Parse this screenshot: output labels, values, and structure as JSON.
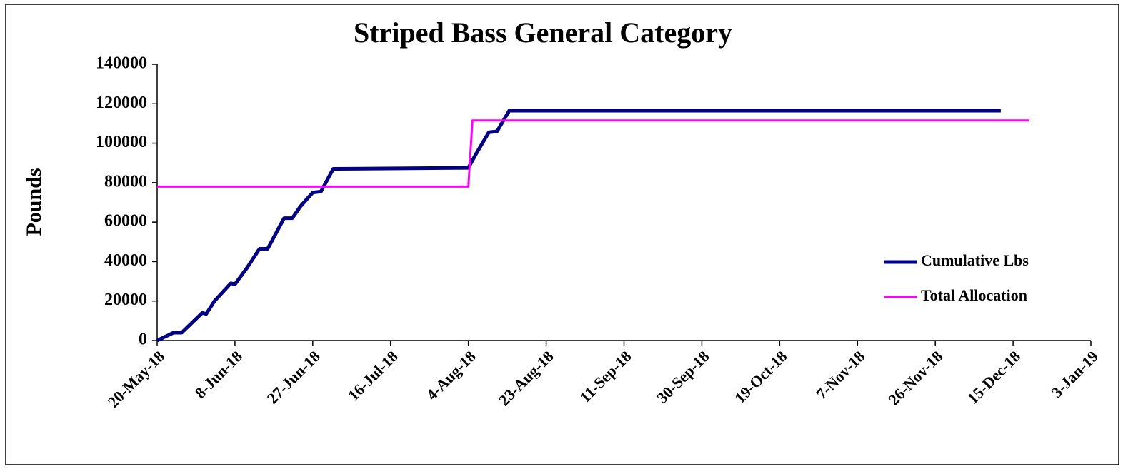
{
  "chart_data": {
    "type": "line",
    "title": "Striped Bass General Category",
    "y_label": "Pounds",
    "xlim": [
      "2018-05-20",
      "2019-01-03"
    ],
    "xticks": [
      {
        "value": "2018-05-20",
        "label": "20-May-18"
      },
      {
        "value": "2018-06-08",
        "label": "8-Jun-18"
      },
      {
        "value": "2018-06-27",
        "label": "27-Jun-18"
      },
      {
        "value": "2018-07-16",
        "label": "16-Jul-18"
      },
      {
        "value": "2018-08-04",
        "label": "4-Aug-18"
      },
      {
        "value": "2018-08-23",
        "label": "23-Aug-18"
      },
      {
        "value": "2018-09-11",
        "label": "11-Sep-18"
      },
      {
        "value": "2018-09-30",
        "label": "30-Sep-18"
      },
      {
        "value": "2018-10-19",
        "label": "19-Oct-18"
      },
      {
        "value": "2018-11-07",
        "label": "7-Nov-18"
      },
      {
        "value": "2018-11-26",
        "label": "26-Nov-18"
      },
      {
        "value": "2018-12-15",
        "label": "15-Dec-18"
      },
      {
        "value": "2019-01-03",
        "label": "3-Jan-19"
      }
    ],
    "ylim": [
      0,
      140000
    ],
    "yticks": [
      0,
      20000,
      40000,
      60000,
      80000,
      100000,
      120000,
      140000
    ],
    "legend": "lower right",
    "series": [
      {
        "name": "Cumulative Lbs",
        "color": "#000080",
        "x": [
          "2018-05-20",
          "2018-05-24",
          "2018-05-26",
          "2018-05-31",
          "2018-06-01",
          "2018-06-03",
          "2018-06-07",
          "2018-06-08",
          "2018-06-11",
          "2018-06-14",
          "2018-06-16",
          "2018-06-20",
          "2018-06-22",
          "2018-06-24",
          "2018-06-27",
          "2018-06-29",
          "2018-07-02",
          "2018-07-03",
          "2018-08-04",
          "2018-08-06",
          "2018-08-09",
          "2018-08-11",
          "2018-08-14",
          "2018-12-12"
        ],
        "values": [
          0,
          4000,
          4000,
          14000,
          13500,
          20000,
          29000,
          28500,
          37000,
          46500,
          46500,
          62000,
          62000,
          68000,
          75000,
          75500,
          87000,
          87000,
          87500,
          95000,
          105500,
          106000,
          116500,
          116500
        ]
      },
      {
        "name": "Total Allocation",
        "color": "#ff00ff",
        "x": [
          "2018-05-20",
          "2018-08-04",
          "2018-08-05",
          "2018-12-19"
        ],
        "values": [
          78000,
          78000,
          111500,
          111500
        ]
      }
    ]
  }
}
